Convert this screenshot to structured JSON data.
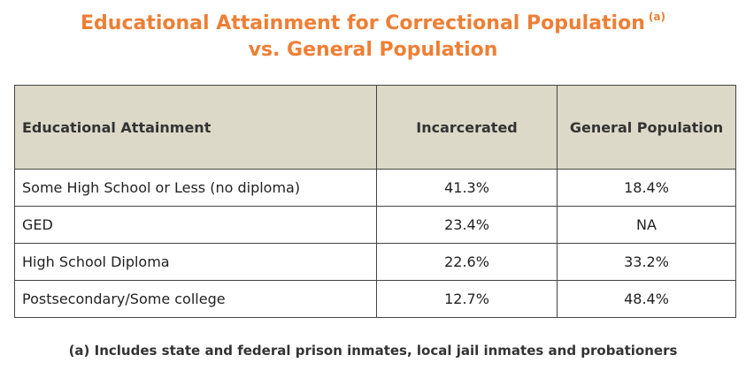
{
  "title": {
    "line1": "Educational Attainment for Correctional Population",
    "note_marker": "(a)",
    "line2": "vs. General Population"
  },
  "table": {
    "headers": [
      "Educational Attainment",
      "Incarcerated",
      "General Population"
    ],
    "rows": [
      [
        "Some High School or Less (no diploma)",
        "41.3%",
        "18.4%"
      ],
      [
        "GED",
        "23.4%",
        "NA"
      ],
      [
        "High School Diploma",
        "22.6%",
        "33.2%"
      ],
      [
        "Postsecondary/Some college",
        "12.7%",
        "48.4%"
      ]
    ]
  },
  "footnote": "(a) Includes state and federal prison inmates, local jail inmates and probationers",
  "colors": {
    "title": "#ee7f35",
    "header_bg": "#ddd9c8",
    "border": "#444444"
  }
}
